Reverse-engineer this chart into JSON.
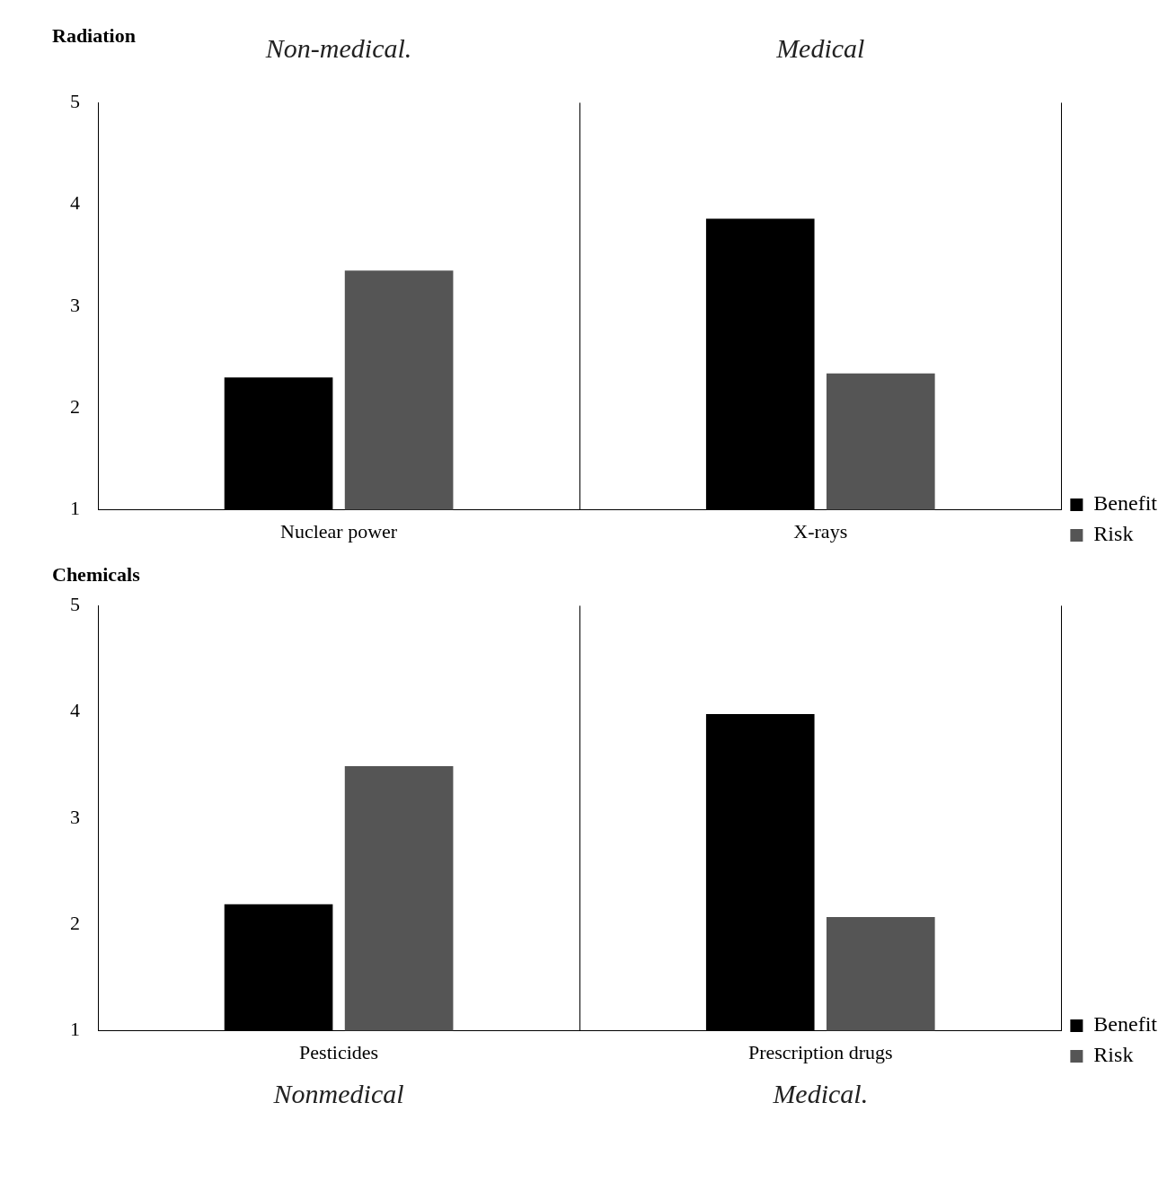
{
  "chart_data": [
    {
      "type": "bar",
      "title": "Radiation",
      "categories": [
        "Nuclear power",
        "X-rays"
      ],
      "series": [
        {
          "name": "Benefit",
          "color": "#000000",
          "values": [
            2.3,
            3.86
          ]
        },
        {
          "name": "Risk",
          "color": "#555555",
          "values": [
            3.35,
            2.34
          ]
        }
      ],
      "ylim": [
        1,
        5
      ],
      "yticks": [
        1,
        2,
        3,
        4,
        5
      ],
      "grid": "x",
      "legend": "bottom right",
      "annotations": [
        "Non-medical.",
        "Medical"
      ]
    },
    {
      "type": "bar",
      "title": "Chemicals",
      "categories": [
        "Pesticides",
        "Prescription drugs"
      ],
      "series": [
        {
          "name": "Benefit",
          "color": "#000000",
          "values": [
            2.19,
            3.98
          ]
        },
        {
          "name": "Risk",
          "color": "#555555",
          "values": [
            3.49,
            2.07
          ]
        }
      ],
      "ylim": [
        1,
        5
      ],
      "yticks": [
        1,
        2,
        3,
        4,
        5
      ],
      "grid": "x",
      "legend": "bottom right",
      "annotations": [
        "Nonmedical",
        "Medical."
      ]
    }
  ]
}
